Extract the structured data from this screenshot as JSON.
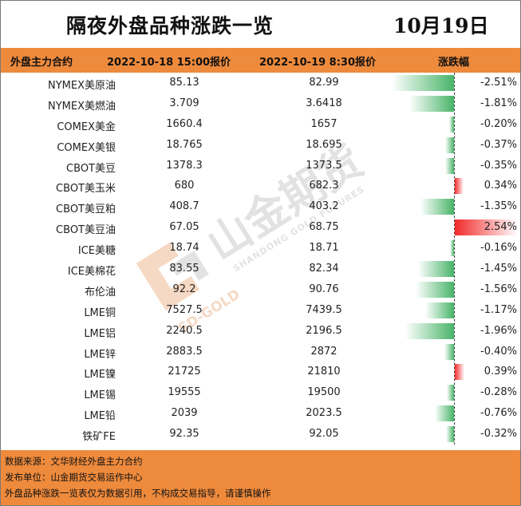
{
  "title": "隔夜外盘品种涨跌一览",
  "date": "10月19日",
  "header": {
    "col_name": "外盘主力合约",
    "col_prev": "2022-10-18 15:00报价",
    "col_curr": "2022-10-19 8:30报价",
    "col_change": "涨跌幅"
  },
  "rows": [
    {
      "name": "NYMEX美原油",
      "prev": "85.13",
      "curr": "82.99",
      "change": "-2.51%",
      "change_value": -2.51
    },
    {
      "name": "NYMEX美燃油",
      "prev": "3.709",
      "curr": "3.6418",
      "change": "-1.81%",
      "change_value": -1.81
    },
    {
      "name": "COMEX美金",
      "prev": "1660.4",
      "curr": "1657",
      "change": "-0.20%",
      "change_value": -0.2
    },
    {
      "name": "COMEX美银",
      "prev": "18.765",
      "curr": "18.695",
      "change": "-0.37%",
      "change_value": -0.37
    },
    {
      "name": "CBOT美豆",
      "prev": "1378.3",
      "curr": "1373.5",
      "change": "-0.35%",
      "change_value": -0.35
    },
    {
      "name": "CBOT美玉米",
      "prev": "680",
      "curr": "682.3",
      "change": "0.34%",
      "change_value": 0.34
    },
    {
      "name": "CBOT美豆粕",
      "prev": "408.7",
      "curr": "403.2",
      "change": "-1.35%",
      "change_value": -1.35
    },
    {
      "name": "CBOT美豆油",
      "prev": "67.05",
      "curr": "68.75",
      "change": "2.54%",
      "change_value": 2.54
    },
    {
      "name": "ICE美糖",
      "prev": "18.74",
      "curr": "18.71",
      "change": "-0.16%",
      "change_value": -0.16
    },
    {
      "name": "ICE美棉花",
      "prev": "83.55",
      "curr": "82.34",
      "change": "-1.45%",
      "change_value": -1.45
    },
    {
      "name": "布伦油",
      "prev": "92.2",
      "curr": "90.76",
      "change": "-1.56%",
      "change_value": -1.56
    },
    {
      "name": "LME铜",
      "prev": "7527.5",
      "curr": "7439.5",
      "change": "-1.17%",
      "change_value": -1.17
    },
    {
      "name": "LME铝",
      "prev": "2240.5",
      "curr": "2196.5",
      "change": "-1.96%",
      "change_value": -1.96
    },
    {
      "name": "LME锌",
      "prev": "2883.5",
      "curr": "2872",
      "change": "-0.40%",
      "change_value": -0.4
    },
    {
      "name": "LME镍",
      "prev": "21725",
      "curr": "21810",
      "change": "0.39%",
      "change_value": 0.39
    },
    {
      "name": "LME锡",
      "prev": "19555",
      "curr": "19500",
      "change": "-0.28%",
      "change_value": -0.28
    },
    {
      "name": "LME铅",
      "prev": "2039",
      "curr": "2023.5",
      "change": "-0.76%",
      "change_value": -0.76
    },
    {
      "name": "铁矿FE",
      "prev": "92.35",
      "curr": "92.05",
      "change": "-0.32%",
      "change_value": -0.32
    }
  ],
  "footer": {
    "line1": "数据来源：文华财经外盘主力合约",
    "line2": "发布单位：山金期货交易运作中心",
    "line3": "外盘品种涨跌一览表仅为数据引用，不构成交易指导，请谨慎操作"
  },
  "watermark": {
    "cn": "山金期货",
    "en": "SHANDONG GOLD FUTURES",
    "sd": "SD-GOLD"
  },
  "colors": {
    "header_bg": "#ee8a3c",
    "negative_bar": "#48b468",
    "positive_bar": "#f22a2a"
  }
}
